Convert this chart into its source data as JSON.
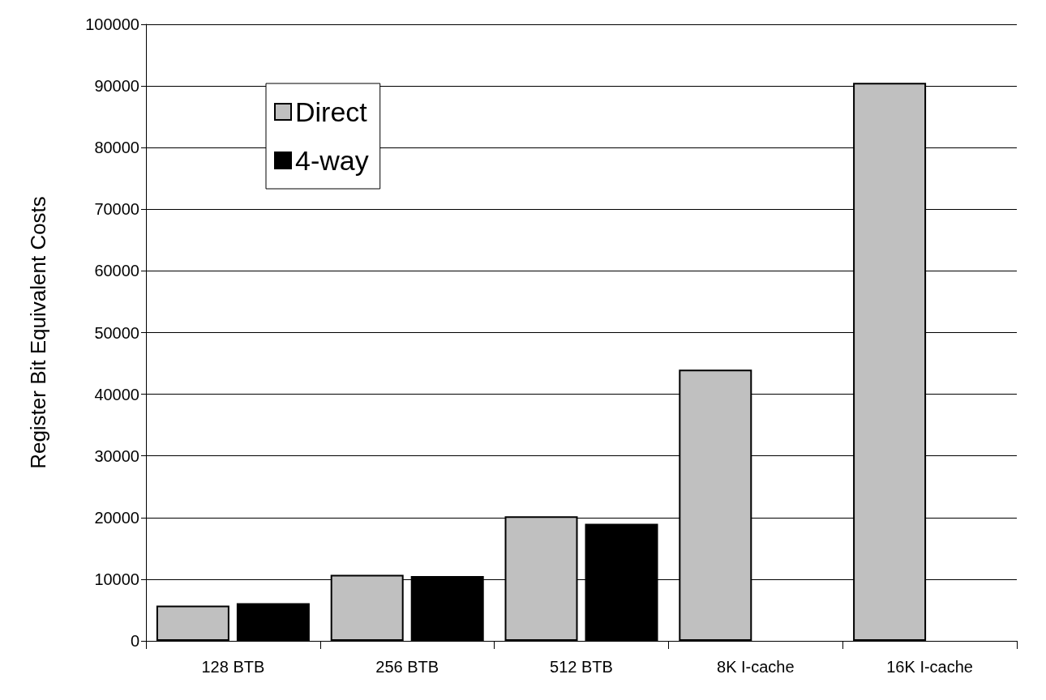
{
  "chart_data": {
    "type": "bar",
    "ylabel": "Register Bit Equivalent Costs",
    "categories": [
      "128 BTB",
      "256 BTB",
      "512 BTB",
      "8K I-cache",
      "16K I-cache"
    ],
    "series": [
      {
        "name": "Direct",
        "color": "#c0c0c0",
        "values": [
          5700,
          10700,
          20200,
          44000,
          90500
        ]
      },
      {
        "name": "4-way",
        "color": "#000000",
        "values": [
          6100,
          10500,
          19000,
          null,
          null
        ]
      }
    ],
    "ylim": [
      0,
      100000
    ],
    "yticks": [
      0,
      10000,
      20000,
      30000,
      40000,
      50000,
      60000,
      70000,
      80000,
      90000,
      100000
    ],
    "grid": "y",
    "legend": "top left"
  }
}
